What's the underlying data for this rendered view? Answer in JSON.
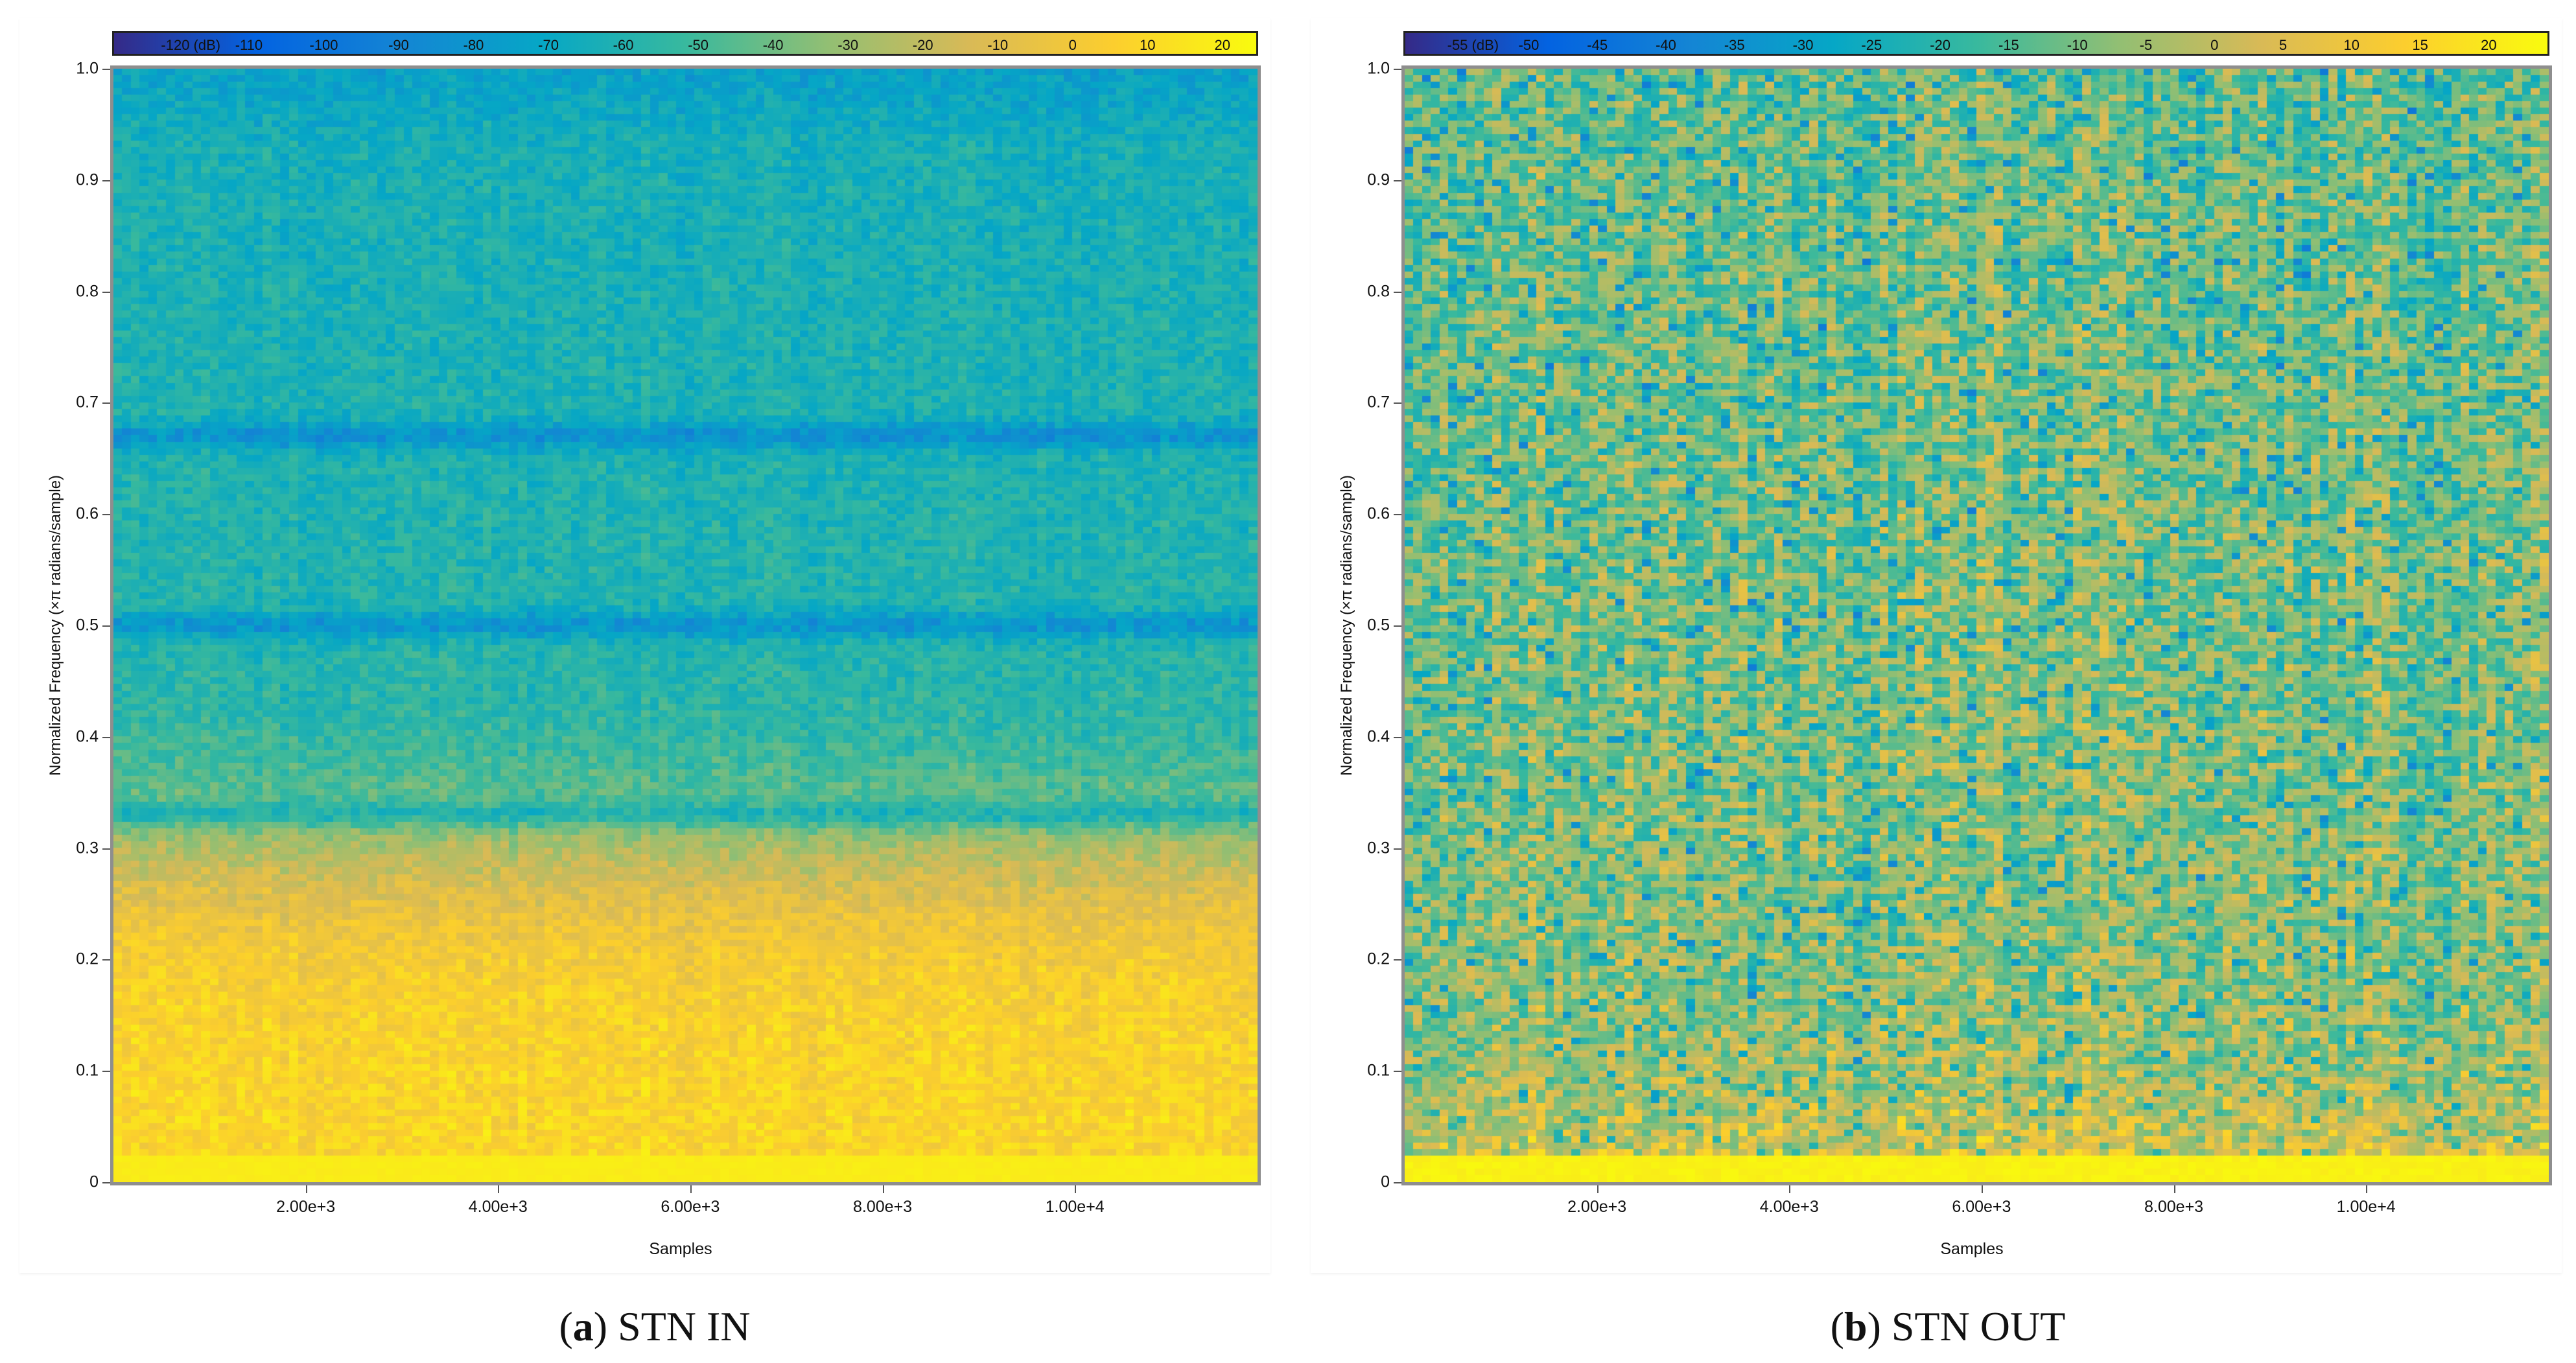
{
  "chart_data": [
    {
      "type": "heatmap",
      "panel_letter": "a",
      "panel_title": "STN IN",
      "xlabel": "Samples",
      "ylabel": "Normalized Frequency (×π radians/sample)",
      "xlim": [
        0,
        11900
      ],
      "ylim": [
        0,
        1.0
      ],
      "x_ticks": [
        "2.00e+3",
        "4.00e+3",
        "6.00e+3",
        "8.00e+3",
        "1.00e+4"
      ],
      "x_tick_values": [
        2000,
        4000,
        6000,
        8000,
        10000
      ],
      "y_ticks": [
        "0",
        "0.1",
        "0.2",
        "0.3",
        "0.4",
        "0.5",
        "0.6",
        "0.7",
        "0.8",
        "0.9",
        "1.0"
      ],
      "colorbar": {
        "unit": "(dB)",
        "range": [
          -128,
          24
        ],
        "tick_labels": [
          "-120 (dB)",
          "-110",
          "-100",
          "-90",
          "-80",
          "-70",
          "-60",
          "-50",
          "-40",
          "-30",
          "-20",
          "-10",
          "0",
          "10",
          "20"
        ],
        "tick_values": [
          -120,
          -110,
          -100,
          -90,
          -80,
          -70,
          -60,
          -50,
          -40,
          -30,
          -20,
          -10,
          0,
          10,
          20
        ],
        "colormap": [
          "#352a87",
          "#0363e1",
          "#1485d4",
          "#06a7c6",
          "#38b99e",
          "#92bf73",
          "#d9ba56",
          "#fcce2e",
          "#f9fb0e"
        ]
      },
      "description_features": {
        "dark_bands_at_frequency": [
          0.33,
          0.5,
          0.67
        ],
        "low_freq_level_db": 8,
        "high_freq_level_db": -75
      }
    },
    {
      "type": "heatmap",
      "panel_letter": "b",
      "panel_title": "STN OUT",
      "xlabel": "Samples",
      "ylabel": "Normalized Frequency (×π radians/sample)",
      "xlim": [
        0,
        11900
      ],
      "ylim": [
        0,
        1.0
      ],
      "x_ticks": [
        "2.00e+3",
        "4.00e+3",
        "6.00e+3",
        "8.00e+3",
        "1.00e+4"
      ],
      "x_tick_values": [
        2000,
        4000,
        6000,
        8000,
        10000
      ],
      "y_ticks": [
        "0",
        "0.1",
        "0.2",
        "0.3",
        "0.4",
        "0.5",
        "0.6",
        "0.7",
        "0.8",
        "0.9",
        "1.0"
      ],
      "colorbar": {
        "unit": "(dB)",
        "range": [
          -59,
          24
        ],
        "tick_labels": [
          "-55 (dB)",
          "-50",
          "-45",
          "-40",
          "-35",
          "-30",
          "-25",
          "-20",
          "-15",
          "-10",
          "-5",
          "0",
          "5",
          "10",
          "15",
          "20"
        ],
        "tick_values": [
          -55,
          -50,
          -45,
          -40,
          -35,
          -30,
          -25,
          -20,
          -15,
          -10,
          -5,
          0,
          5,
          10,
          15,
          20
        ],
        "colormap": [
          "#352a87",
          "#0363e1",
          "#1485d4",
          "#06a7c6",
          "#38b99e",
          "#92bf73",
          "#d9ba56",
          "#fcce2e",
          "#f9fb0e"
        ]
      },
      "description_features": {
        "dark_bands_at_frequency": [],
        "low_freq_level_db": 12,
        "high_freq_level_db": -20
      }
    }
  ]
}
